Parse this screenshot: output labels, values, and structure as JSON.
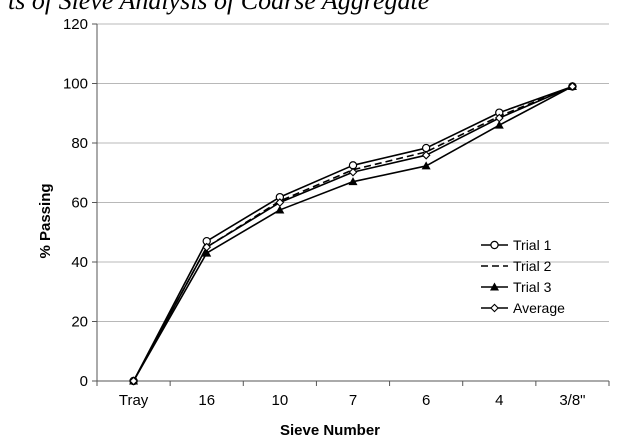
{
  "title_fragment": "ts of Sieve Analysis of Coarse Aggregate",
  "chart_data": {
    "type": "line",
    "title": "",
    "xlabel": "Sieve Number",
    "ylabel": "% Passing",
    "categories": [
      "Tray",
      "16",
      "10",
      "7",
      "6",
      "4",
      "3/8\""
    ],
    "ylim": [
      0,
      120
    ],
    "yticks": [
      0,
      20,
      40,
      60,
      80,
      100,
      120
    ],
    "grid": "horizontal",
    "legend_position": "right",
    "series": [
      {
        "name": "Trial 1",
        "values": [
          0,
          47,
          61.8,
          72.5,
          78.3,
          90.2,
          99
        ],
        "marker": "open-circle",
        "line": "solid",
        "color": "#000000"
      },
      {
        "name": "Trial 2",
        "values": [
          0,
          45,
          60.5,
          71,
          77,
          89,
          99
        ],
        "marker": "none",
        "line": "dashed",
        "color": "#000000"
      },
      {
        "name": "Trial 3",
        "values": [
          0,
          43,
          57.5,
          67,
          72.3,
          86,
          99
        ],
        "marker": "filled-triangle",
        "line": "solid",
        "color": "#000000"
      },
      {
        "name": "Average",
        "values": [
          0,
          45,
          60,
          70.2,
          75.9,
          88.4,
          99
        ],
        "marker": "open-diamond",
        "line": "solid",
        "color": "#000000"
      }
    ]
  }
}
